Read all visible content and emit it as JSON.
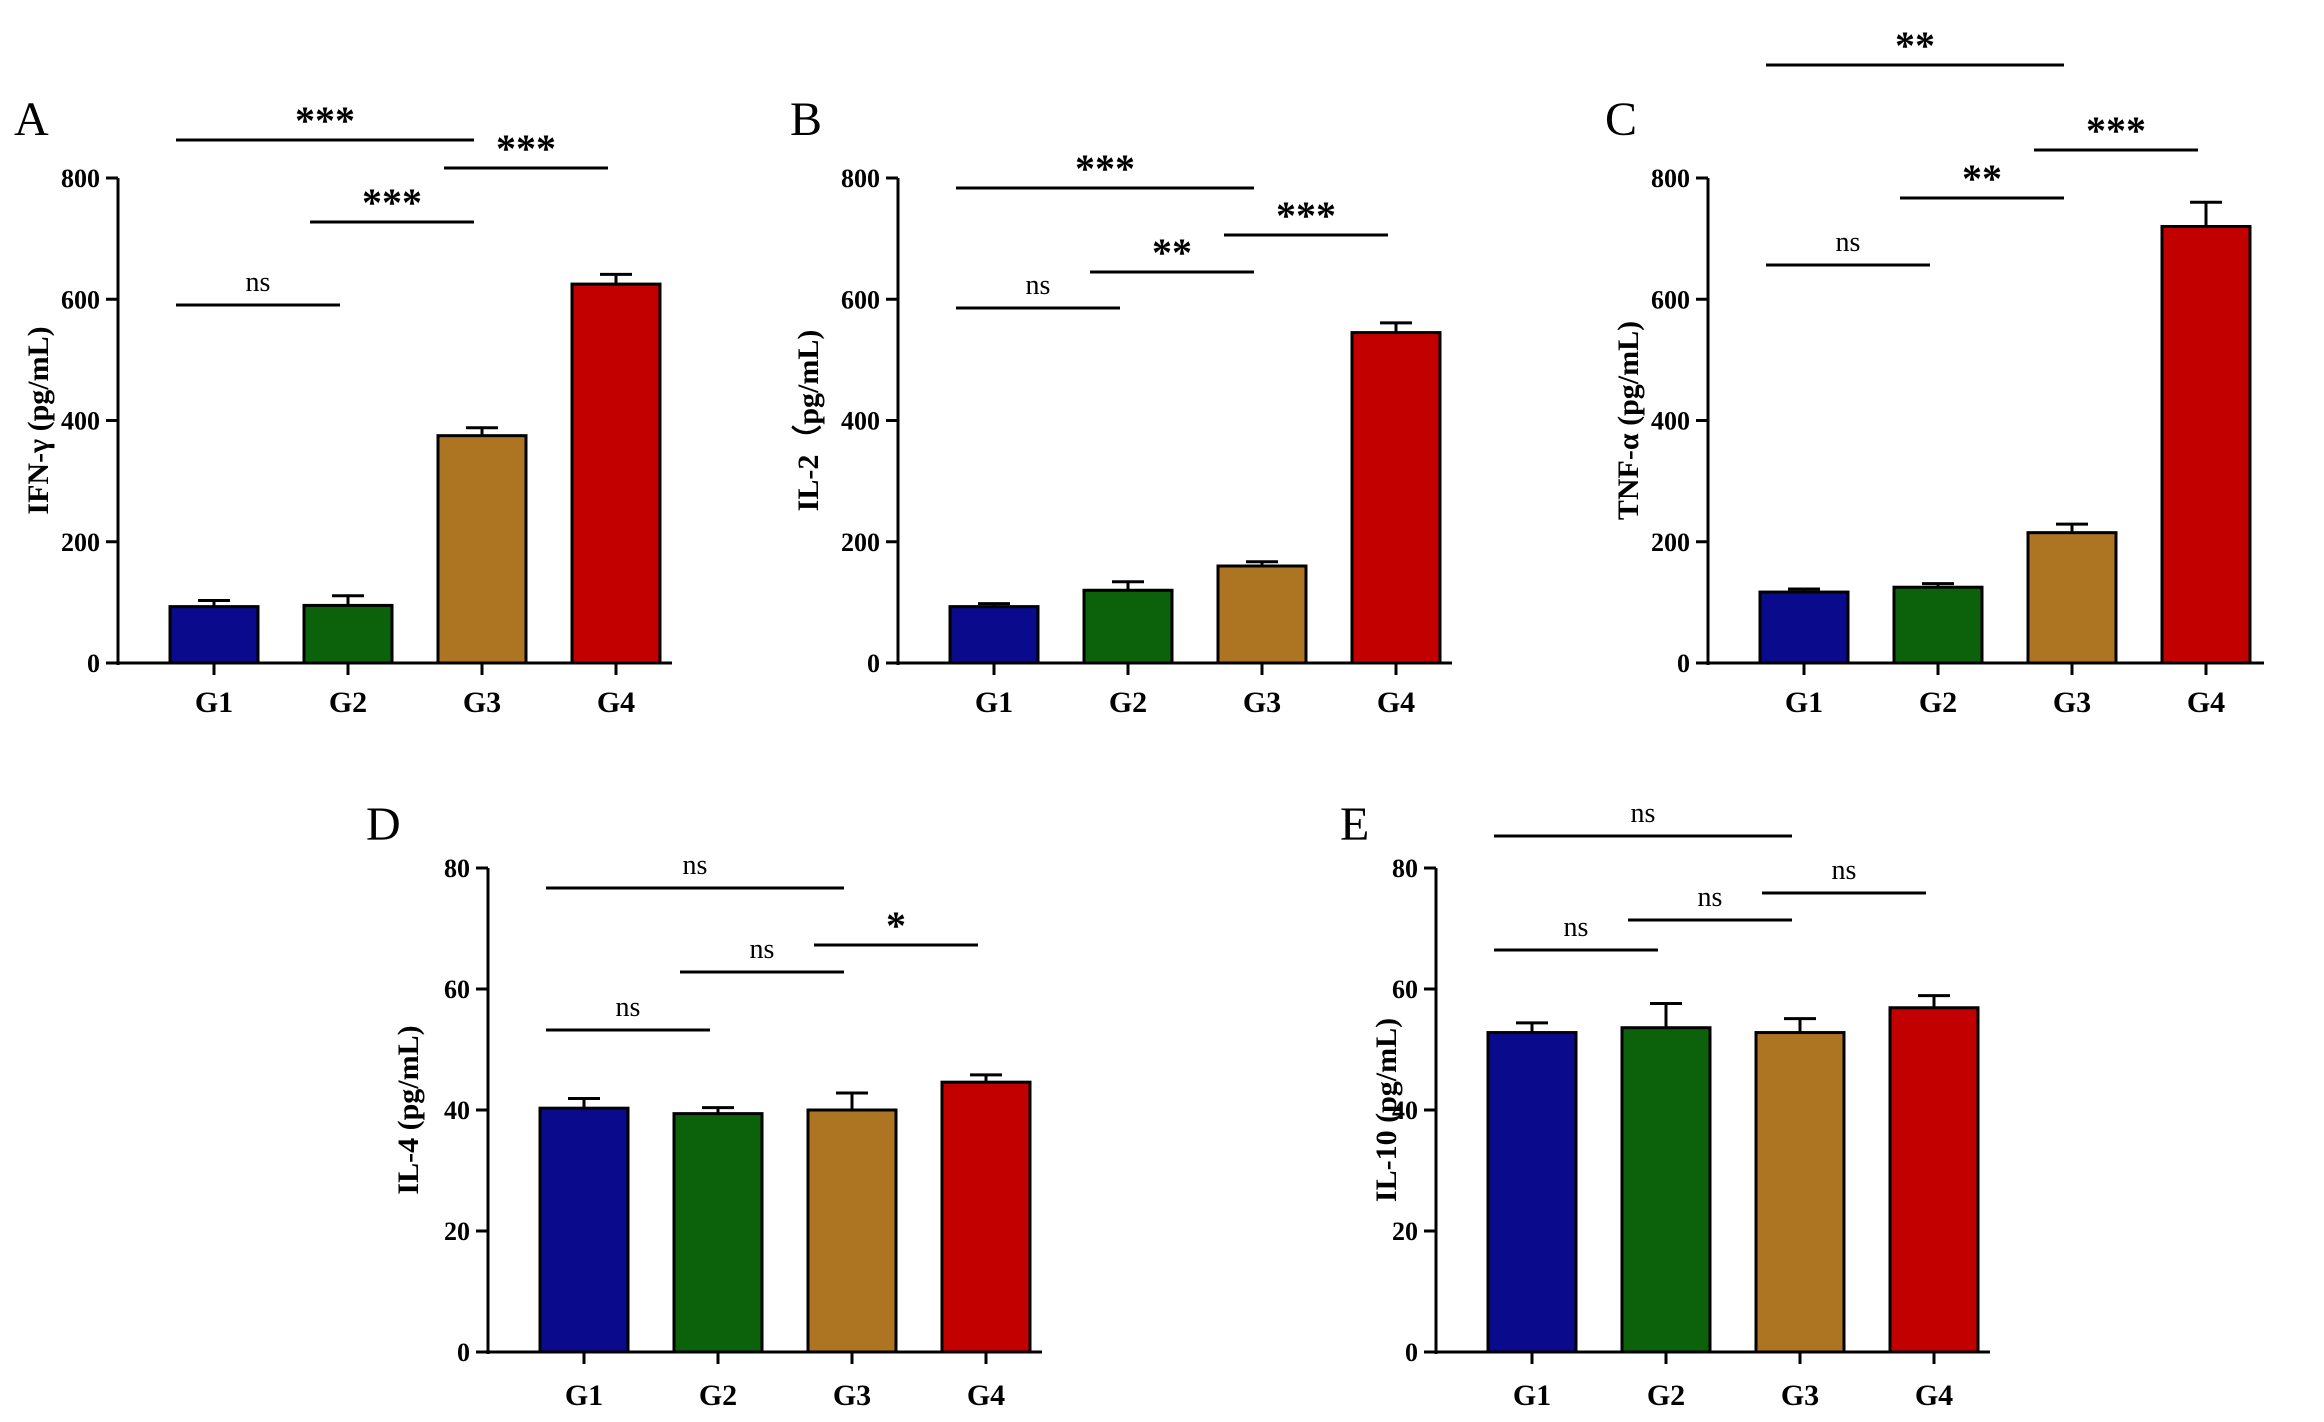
{
  "figure": {
    "colors": {
      "G1": "#0a0a8c",
      "G2": "#0b620b",
      "G3": "#ad7422",
      "G4": "#c30000",
      "axis": "#000000"
    }
  },
  "chart_data": [
    {
      "panel": "A",
      "type": "bar",
      "title": "",
      "xlabel": "",
      "ylabel": "IFN-γ (pg/mL)",
      "ylim": [
        0,
        800
      ],
      "yticks": [
        "0",
        "200",
        "400",
        "600",
        "800"
      ],
      "categories": [
        "G1",
        "G2",
        "G3",
        "G4"
      ],
      "values": [
        93,
        95,
        375,
        625
      ],
      "errors": [
        10,
        16,
        13,
        16
      ],
      "comparisons": [
        {
          "from": 0,
          "to": 1,
          "label": "ns",
          "level": 0
        },
        {
          "from": 1,
          "to": 2,
          "label": "***",
          "level": 1
        },
        {
          "from": 2,
          "to": 3,
          "label": "***",
          "level": 2
        },
        {
          "from": 0,
          "to": 2,
          "label": "***",
          "level": 3
        }
      ]
    },
    {
      "panel": "B",
      "type": "bar",
      "title": "",
      "xlabel": "",
      "ylabel": "IL-2（pg/mL)",
      "ylim": [
        0,
        800
      ],
      "yticks": [
        "0",
        "200",
        "400",
        "600",
        "800"
      ],
      "categories": [
        "G1",
        "G2",
        "G3",
        "G4"
      ],
      "values": [
        93,
        120,
        160,
        545
      ],
      "errors": [
        5,
        14,
        7,
        16
      ],
      "comparisons": [
        {
          "from": 0,
          "to": 1,
          "label": "ns",
          "level": 0
        },
        {
          "from": 1,
          "to": 2,
          "label": "**",
          "level": 1
        },
        {
          "from": 2,
          "to": 3,
          "label": "***",
          "level": 2
        },
        {
          "from": 0,
          "to": 2,
          "label": "***",
          "level": 3
        }
      ]
    },
    {
      "panel": "C",
      "type": "bar",
      "title": "",
      "xlabel": "",
      "ylabel": "TNF-α (pg/mL)",
      "ylim": [
        0,
        800
      ],
      "yticks": [
        "0",
        "200",
        "400",
        "600",
        "800"
      ],
      "categories": [
        "G1",
        "G2",
        "G3",
        "G4"
      ],
      "values": [
        117,
        125,
        215,
        720
      ],
      "errors": [
        5,
        6,
        14,
        40
      ],
      "comparisons": [
        {
          "from": 0,
          "to": 1,
          "label": "ns",
          "level": 0
        },
        {
          "from": 1,
          "to": 2,
          "label": "**",
          "level": 1
        },
        {
          "from": 2,
          "to": 3,
          "label": "***",
          "level": 2
        },
        {
          "from": 0,
          "to": 2,
          "label": "**",
          "level": 3
        }
      ]
    },
    {
      "panel": "D",
      "type": "bar",
      "title": "",
      "xlabel": "",
      "ylabel": "IL-4 (pg/mL)",
      "ylim": [
        0,
        80
      ],
      "yticks": [
        "0",
        "20",
        "40",
        "60",
        "80"
      ],
      "categories": [
        "G1",
        "G2",
        "G3",
        "G4"
      ],
      "values": [
        40.3,
        39.4,
        40,
        44.6
      ],
      "errors": [
        1.6,
        1,
        2.8,
        1.2
      ],
      "comparisons": [
        {
          "from": 0,
          "to": 1,
          "label": "ns",
          "level": 0
        },
        {
          "from": 1,
          "to": 2,
          "label": "ns",
          "level": 1
        },
        {
          "from": 2,
          "to": 3,
          "label": "*",
          "level": 2
        },
        {
          "from": 0,
          "to": 2,
          "label": "ns",
          "level": 3
        }
      ]
    },
    {
      "panel": "E",
      "type": "bar",
      "title": "",
      "xlabel": "",
      "ylabel": "IL-10 (pg/mL)",
      "ylim": [
        0,
        80
      ],
      "yticks": [
        "0",
        "20",
        "40",
        "60",
        "80"
      ],
      "categories": [
        "G1",
        "G2",
        "G3",
        "G4"
      ],
      "values": [
        52.8,
        53.6,
        52.8,
        56.9
      ],
      "errors": [
        1.6,
        4,
        2.3,
        2
      ],
      "comparisons": [
        {
          "from": 0,
          "to": 1,
          "label": "ns",
          "level": 0
        },
        {
          "from": 1,
          "to": 2,
          "label": "ns",
          "level": 1
        },
        {
          "from": 2,
          "to": 3,
          "label": "ns",
          "level": 2
        },
        {
          "from": 0,
          "to": 2,
          "label": "ns",
          "level": 3
        }
      ]
    }
  ]
}
